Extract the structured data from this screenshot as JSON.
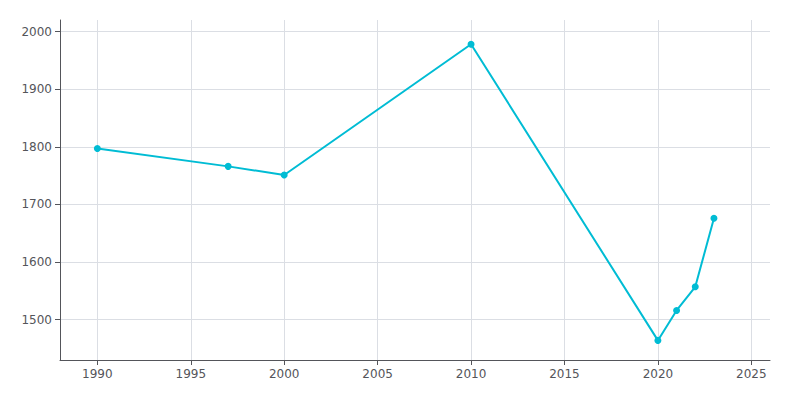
{
  "chart_data": {
    "type": "line",
    "x": [
      1990,
      1997,
      2000,
      2010,
      2020,
      2021,
      2022,
      2023
    ],
    "values": [
      1797,
      1766,
      1751,
      1978,
      1464,
      1516,
      1557,
      1676
    ],
    "color": "#00bcd4",
    "marker": "circle",
    "xlim": [
      1988,
      2026
    ],
    "ylim": [
      1430,
      2020
    ],
    "xticks": [
      1990,
      1995,
      2000,
      2005,
      2010,
      2015,
      2020,
      2025
    ],
    "yticks": [
      1500,
      1600,
      1700,
      1800,
      1900,
      2000
    ],
    "grid": true
  }
}
